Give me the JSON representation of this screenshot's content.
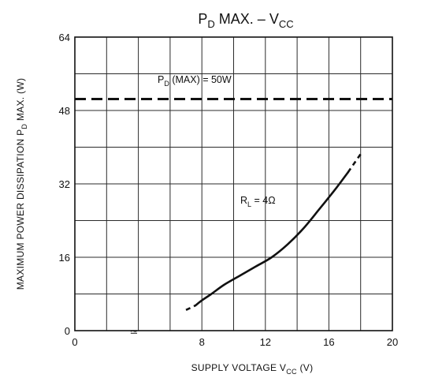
{
  "chart_data": {
    "type": "line",
    "title": {
      "main": "P",
      "sub": "D",
      "rest": " MAX.  –  V",
      "sub2": "CC"
    },
    "xlabel": {
      "main": "SUPPLY VOLTAGE   V",
      "sub": "CC",
      "unit": "  (V)"
    },
    "ylabel": {
      "main": "MAXIMUM POWER DISSIPATION   P",
      "sub": "D",
      "rest": " MAX.   (W)"
    },
    "xlim": [
      0,
      20
    ],
    "ylim": [
      0,
      64
    ],
    "x_ticks": [
      "0",
      "8",
      "12",
      "16",
      "20"
    ],
    "x_tick_values": [
      0,
      8,
      12,
      16,
      20
    ],
    "y_ticks": [
      "0",
      "16",
      "32",
      "48",
      "64"
    ],
    "y_tick_values": [
      0,
      16,
      32,
      48,
      64
    ],
    "x_break_label": "≃",
    "grid": true,
    "series": [
      {
        "name": "P_D (MAX) = 50W",
        "label": {
          "main": "P",
          "sub": "D",
          "rest": "  (MAX) = 50W"
        },
        "style": "dashed",
        "x": [
          0,
          20
        ],
        "y": [
          50.5,
          50.5
        ]
      },
      {
        "name": "R_L = 4Ω",
        "label": {
          "main": "R",
          "sub": "L",
          "rest": " = 4Ω"
        },
        "style": "solid",
        "x": [
          7.6,
          8.0,
          8.6,
          9.4,
          10.4,
          11.4,
          12.4,
          13.4,
          14.4,
          15.4,
          16.4,
          17.2
        ],
        "y": [
          5.5,
          6.6,
          8.0,
          10.0,
          12.0,
          14.0,
          16.0,
          18.8,
          22.3,
          26.5,
          30.8,
          34.5
        ],
        "dashed_start": [
          [
            7.0,
            4.5
          ],
          [
            7.6,
            5.5
          ]
        ],
        "dashed_end": [
          [
            17.2,
            34.5
          ],
          [
            18.0,
            38.5
          ]
        ]
      }
    ]
  },
  "colors": {
    "ink": "#111111",
    "background": "#ffffff"
  }
}
